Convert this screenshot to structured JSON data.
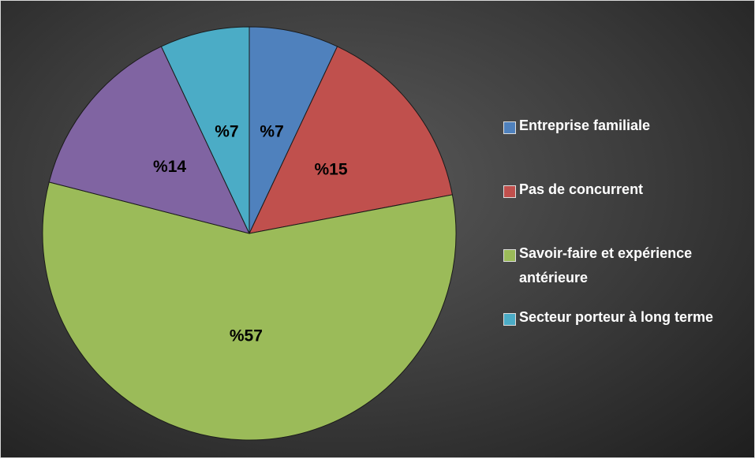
{
  "chart_data": {
    "type": "pie",
    "categories": [
      "Entreprise familiale",
      "Pas de concurrent",
      "Savoir-faire et expérience antérieure",
      null,
      "Secteur porteur à long terme"
    ],
    "values": [
      7,
      15,
      57,
      14,
      7
    ],
    "value_labels": [
      "%7",
      "%15",
      "%57",
      "%14",
      "%7"
    ],
    "colors": [
      "#4f81bd",
      "#c0504d",
      "#9bbb59",
      "#8064a2",
      "#4bacc6"
    ],
    "legend": "right"
  }
}
